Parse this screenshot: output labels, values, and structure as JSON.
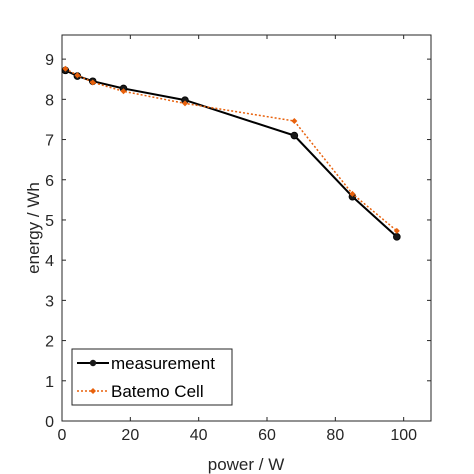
{
  "chart_data": {
    "type": "line",
    "title": "",
    "xlabel": "power / W",
    "ylabel": "energy / Wh",
    "xlim": [
      0,
      108
    ],
    "ylim": [
      0,
      9.6
    ],
    "xticks": [
      0,
      20,
      40,
      60,
      80,
      100
    ],
    "yticks": [
      0,
      1,
      2,
      3,
      4,
      5,
      6,
      7,
      8,
      9
    ],
    "grid": false,
    "legend_position": "bottom-left",
    "series": [
      {
        "name": "measurement",
        "color": "#000000",
        "line_style": "solid",
        "marker": "circle",
        "x": [
          1.0,
          4.5,
          9.0,
          18.0,
          36.0,
          68.0,
          85.0,
          98.0
        ],
        "y": [
          8.72,
          8.58,
          8.45,
          8.27,
          7.98,
          7.1,
          5.58,
          4.58
        ]
      },
      {
        "name": "Batemo Cell",
        "color": "#e8610c",
        "line_style": "dotted",
        "marker": "diamond",
        "x": [
          1.0,
          4.5,
          9.0,
          18.0,
          36.0,
          68.0,
          85.0,
          98.0
        ],
        "y": [
          8.76,
          8.6,
          8.42,
          8.2,
          7.9,
          7.46,
          5.65,
          4.73
        ]
      }
    ]
  }
}
